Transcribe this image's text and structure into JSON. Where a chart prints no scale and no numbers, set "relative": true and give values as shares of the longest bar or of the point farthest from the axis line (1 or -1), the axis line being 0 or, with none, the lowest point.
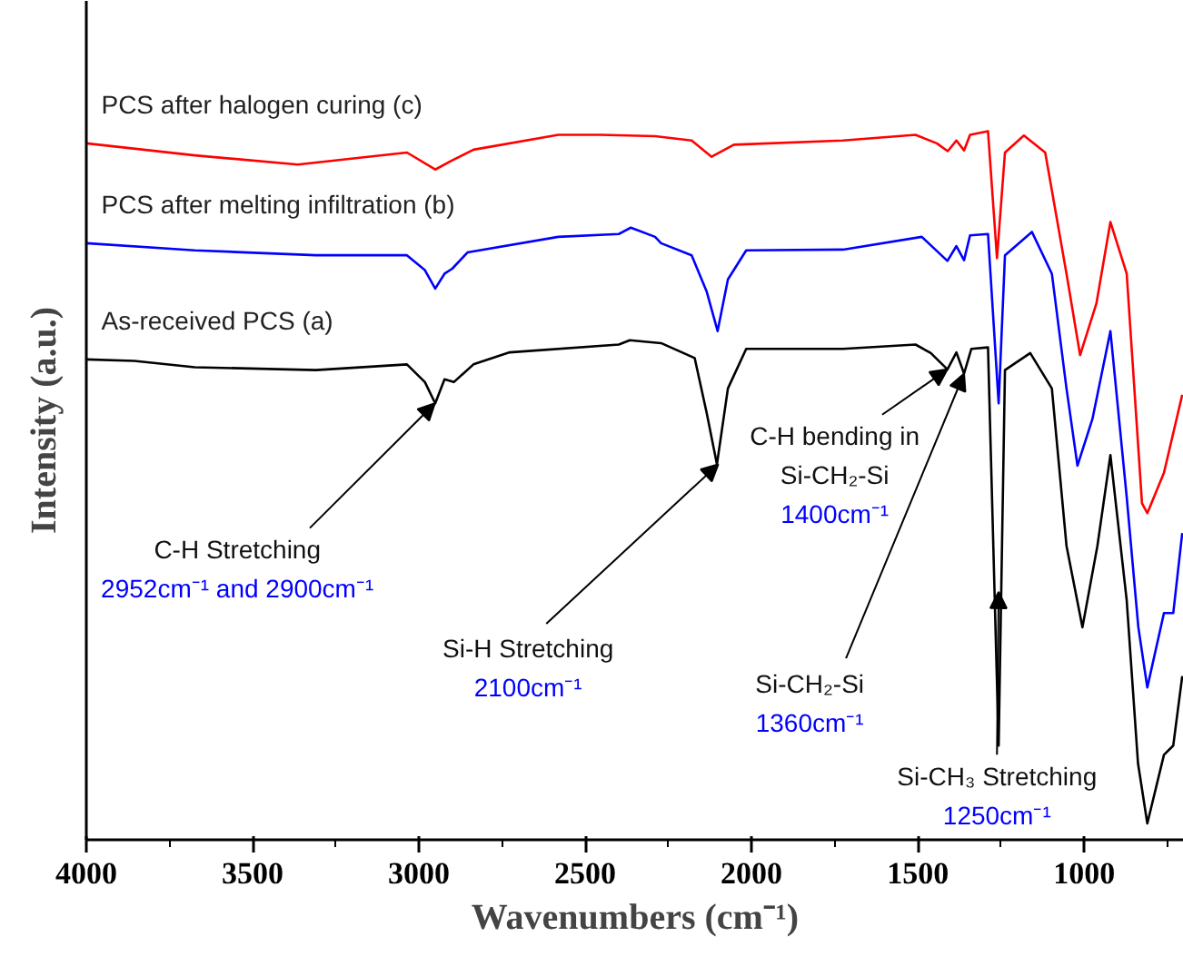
{
  "chart_data": {
    "type": "line",
    "relative": true,
    "xlabel": "Wavenumbers (cm⁻¹)",
    "ylabel": "Intensity (a.u.)",
    "xlim": [
      4000,
      700
    ],
    "xticks": [
      4000,
      {
        "value": 3750,
        "label": null
      },
      3500,
      {
        "value": 3250,
        "label": null
      },
      3000,
      {
        "value": 2750,
        "label": null
      },
      2500,
      {
        "value": 2250,
        "label": null
      },
      2000,
      {
        "value": 1750,
        "label": null
      },
      1500,
      {
        "value": 1250,
        "label": null
      },
      1000,
      {
        "value": 750,
        "label": null
      }
    ],
    "legend": false,
    "grid": false,
    "tick_labels": "x",
    "series": [
      {
        "name": "PCS after halogen curing (c)",
        "color": "#ff0000",
        "x": [
          4000,
          3674,
          3364,
          3036,
          2951,
          2900,
          2836,
          2581,
          2454,
          2290,
          2180,
          2120,
          2053,
          1725,
          1507,
          1443,
          1410,
          1384,
          1361,
          1343,
          1289,
          1262,
          1238,
          1181,
          1117,
          1053,
          1012,
          963,
          921,
          872,
          826,
          810,
          760,
          705
        ],
        "values": [
          0.983,
          0.966,
          0.953,
          0.97,
          0.946,
          0.959,
          0.974,
          0.995,
          0.995,
          0.993,
          0.987,
          0.964,
          0.981,
          0.987,
          0.995,
          0.983,
          0.972,
          0.987,
          0.973,
          0.995,
          1.0,
          0.821,
          0.97,
          0.994,
          0.97,
          0.799,
          0.684,
          0.757,
          0.872,
          0.799,
          0.475,
          0.461,
          0.518,
          0.628
        ]
      },
      {
        "name": "PCS after melting infiltration (b)",
        "color": "#0000ff",
        "x": [
          4000,
          3674,
          3310,
          3036,
          2982,
          2951,
          2923,
          2900,
          2854,
          2581,
          2399,
          2363,
          2290,
          2272,
          2180,
          2135,
          2102,
          2071,
          2016,
          1725,
          1488,
          1411,
          1384,
          1361,
          1343,
          1289,
          1257,
          1238,
          1157,
          1097,
          1053,
          1020,
          975,
          921,
          872,
          837,
          810,
          760,
          732,
          705
        ],
        "values": [
          0.842,
          0.832,
          0.825,
          0.825,
          0.804,
          0.778,
          0.799,
          0.806,
          0.829,
          0.851,
          0.855,
          0.864,
          0.851,
          0.842,
          0.825,
          0.774,
          0.718,
          0.791,
          0.832,
          0.833,
          0.851,
          0.817,
          0.838,
          0.818,
          0.853,
          0.855,
          0.616,
          0.825,
          0.858,
          0.799,
          0.637,
          0.528,
          0.594,
          0.718,
          0.484,
          0.3,
          0.215,
          0.32,
          0.32,
          0.433
        ]
      },
      {
        "name": "As-received PCS (a)",
        "color": "#000000",
        "x": [
          4000,
          3856,
          3674,
          3310,
          3036,
          2982,
          2951,
          2923,
          2895,
          2836,
          2727,
          2399,
          2366,
          2272,
          2171,
          2135,
          2104,
          2071,
          2016,
          1725,
          1507,
          1461,
          1411,
          1384,
          1361,
          1339,
          1289,
          1257,
          1238,
          1162,
          1097,
          1053,
          1005,
          960,
          921,
          872,
          838,
          810,
          760,
          732,
          705
        ],
        "values": [
          0.678,
          0.676,
          0.667,
          0.663,
          0.671,
          0.646,
          0.616,
          0.65,
          0.646,
          0.671,
          0.688,
          0.699,
          0.705,
          0.701,
          0.68,
          0.603,
          0.53,
          0.637,
          0.693,
          0.693,
          0.699,
          0.687,
          0.664,
          0.688,
          0.658,
          0.693,
          0.695,
          0.133,
          0.663,
          0.687,
          0.637,
          0.415,
          0.3,
          0.415,
          0.543,
          0.338,
          0.108,
          0.023,
          0.12,
          0.133,
          0.231
        ]
      }
    ],
    "annotations": [
      {
        "text": "C-H Stretching\n2952cm⁻¹ and 2900cm⁻¹",
        "x": 2952,
        "y": 0.616
      },
      {
        "text": "Si-H Stretching\n2100cm⁻¹",
        "x": 2100,
        "y": 0.53
      },
      {
        "text": "C-H bending in\nSi-CH₂-Si\n1400cm⁻¹",
        "x": 1411,
        "y": 0.664
      },
      {
        "text": "Si-CH₂-Si\n1360cm⁻¹",
        "x": 1361,
        "y": 0.658
      },
      {
        "text": "Si-CH₃ Stretching\n1250cm⁻¹",
        "x": 1257,
        "y": 0.35
      }
    ]
  }
}
